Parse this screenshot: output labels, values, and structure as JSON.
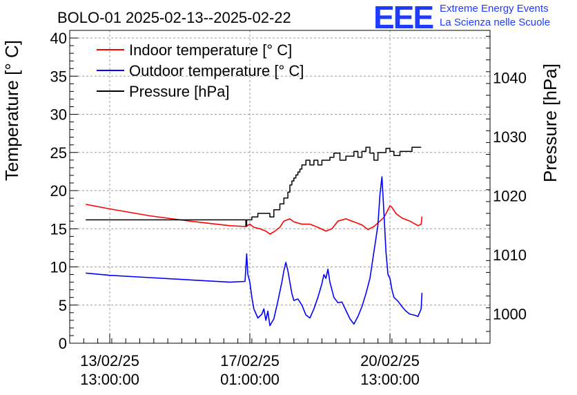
{
  "logo": {
    "mark": "EEE",
    "line1": "Extreme Energy Events",
    "line2": "La Scienza nelle Scuole"
  },
  "chart_data": {
    "type": "line",
    "title": "BOLO-01 2025-02-13--2025-02-22",
    "ylabel": "Temperature [° C]",
    "y2label": "Pressure [hPa]",
    "ylim": [
      0,
      41
    ],
    "y2lim": [
      995,
      1048
    ],
    "yticks": [
      0,
      5,
      10,
      15,
      20,
      25,
      30,
      35,
      40
    ],
    "y2ticks": [
      1000,
      1010,
      1020,
      1030,
      1040
    ],
    "xlim": [
      0,
      10.5
    ],
    "xticks": [
      {
        "x": 1,
        "label": [
          "13/02/25",
          "13:00:00"
        ]
      },
      {
        "x": 4.5,
        "label": [
          "17/02/25",
          "01:00:00"
        ]
      },
      {
        "x": 8,
        "label": [
          "20/02/25",
          "13:00:00"
        ]
      }
    ],
    "grid": true,
    "legend_position": "top-left",
    "series": [
      {
        "name": "Indoor temperature [° C]",
        "axis": "left",
        "color": "#ff0000",
        "x": [
          0.4,
          1.0,
          2.0,
          3.0,
          4.0,
          4.4,
          4.5,
          4.6,
          4.75,
          4.9,
          5.0,
          5.1,
          5.25,
          5.35,
          5.5,
          5.6,
          5.8,
          6.0,
          6.2,
          6.4,
          6.55,
          6.7,
          6.9,
          7.1,
          7.3,
          7.45,
          7.6,
          7.75,
          7.85,
          7.95,
          8.0,
          8.05,
          8.15,
          8.3,
          8.5,
          8.7,
          8.78,
          8.8
        ],
        "y": [
          18.2,
          17.6,
          16.7,
          16.0,
          15.4,
          15.3,
          15.6,
          15.2,
          15.0,
          14.7,
          14.3,
          14.6,
          15.2,
          16.0,
          16.3,
          15.9,
          15.6,
          15.6,
          15.2,
          14.7,
          15.0,
          16.0,
          16.3,
          15.9,
          15.5,
          14.9,
          15.3,
          16.0,
          16.5,
          17.5,
          18.0,
          17.8,
          17.0,
          16.4,
          16.0,
          15.4,
          15.6,
          16.6
        ]
      },
      {
        "name": "Outdoor temperature [° C]",
        "axis": "left",
        "color": "#0000ff",
        "x": [
          0.4,
          1.0,
          2.0,
          3.0,
          4.0,
          4.38,
          4.42,
          4.45,
          4.5,
          4.55,
          4.6,
          4.7,
          4.8,
          4.85,
          4.9,
          4.95,
          5.0,
          5.1,
          5.2,
          5.3,
          5.35,
          5.4,
          5.45,
          5.5,
          5.55,
          5.6,
          5.7,
          5.8,
          5.9,
          6.0,
          6.1,
          6.2,
          6.3,
          6.35,
          6.4,
          6.45,
          6.5,
          6.6,
          6.7,
          6.8,
          6.9,
          7.0,
          7.1,
          7.2,
          7.3,
          7.4,
          7.5,
          7.6,
          7.7,
          7.75,
          7.8,
          7.85,
          7.9,
          7.95,
          8.0,
          8.05,
          8.1,
          8.2,
          8.3,
          8.4,
          8.5,
          8.6,
          8.7,
          8.78,
          8.8
        ],
        "y": [
          9.2,
          8.9,
          8.6,
          8.3,
          8.0,
          8.1,
          11.7,
          9.0,
          8.0,
          6.0,
          4.5,
          3.3,
          3.8,
          4.5,
          3.0,
          4.2,
          2.3,
          3.2,
          5.5,
          8.0,
          9.5,
          10.6,
          9.5,
          8.0,
          6.5,
          5.6,
          5.8,
          5.0,
          3.7,
          3.3,
          4.5,
          6.0,
          7.8,
          9.0,
          8.5,
          9.7,
          8.0,
          6.0,
          5.3,
          5.4,
          4.3,
          3.2,
          2.5,
          3.5,
          4.8,
          6.5,
          8.5,
          12.0,
          15.5,
          19.5,
          21.8,
          17.0,
          12.0,
          9.0,
          8.5,
          7.0,
          6.0,
          5.5,
          4.8,
          4.2,
          3.8,
          3.7,
          3.5,
          4.5,
          6.6
        ]
      },
      {
        "name": "Pressure [hPa]",
        "axis": "right",
        "color": "#000000",
        "step": true,
        "x": [
          0.4,
          4.0,
          4.4,
          4.42,
          4.55,
          4.7,
          5.0,
          5.1,
          5.25,
          5.35,
          5.45,
          5.5,
          5.55,
          5.6,
          5.65,
          5.7,
          5.75,
          5.8,
          5.9,
          6.0,
          6.1,
          6.2,
          6.3,
          6.45,
          6.5,
          6.6,
          6.75,
          6.9,
          7.0,
          7.1,
          7.2,
          7.3,
          7.4,
          7.5,
          7.6,
          7.7,
          7.8,
          7.9,
          8.0,
          8.1,
          8.25,
          8.4,
          8.55,
          8.7,
          8.78
        ],
        "y": [
          1015.9,
          1015.9,
          1014.8,
          1015.9,
          1016.4,
          1017.0,
          1016.4,
          1017.6,
          1018.6,
          1019.6,
          1020.6,
          1021.8,
          1022.5,
          1023.0,
          1023.5,
          1024.0,
          1024.5,
          1025.2,
          1026.0,
          1025.2,
          1026.0,
          1025.2,
          1026.0,
          1026.0,
          1026.5,
          1027.2,
          1026.0,
          1026.7,
          1026.7,
          1027.5,
          1026.5,
          1027.5,
          1028.2,
          1027.2,
          1026.0,
          1027.3,
          1027.3,
          1028.0,
          1027.5,
          1026.8,
          1027.5,
          1027.5,
          1028.2,
          1028.2,
          1028.2
        ]
      }
    ]
  }
}
